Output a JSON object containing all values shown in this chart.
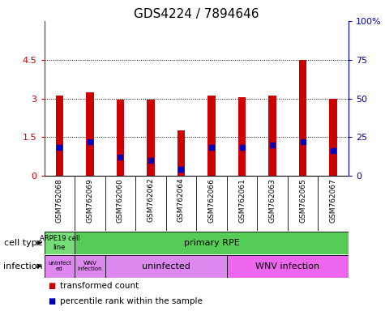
{
  "title": "GDS4224 / 7894646",
  "samples": [
    "GSM762068",
    "GSM762069",
    "GSM762060",
    "GSM762062",
    "GSM762064",
    "GSM762066",
    "GSM762061",
    "GSM762063",
    "GSM762065",
    "GSM762067"
  ],
  "transformed_counts": [
    3.1,
    3.25,
    2.95,
    2.95,
    1.75,
    3.1,
    3.05,
    3.1,
    4.5,
    3.0
  ],
  "percentile_ranks_pct": [
    18,
    22,
    12,
    10,
    4,
    18,
    18,
    20,
    22,
    16
  ],
  "ylim_left": [
    0,
    6
  ],
  "ylim_right": [
    0,
    100
  ],
  "yticks_left": [
    0,
    1.5,
    3.0,
    4.5
  ],
  "ytick_labels_left": [
    "0",
    "1.5",
    "3",
    "4.5"
  ],
  "yticks_right": [
    0,
    25,
    50,
    75,
    100
  ],
  "ytick_labels_right": [
    "0",
    "25",
    "50",
    "75",
    "100%"
  ],
  "bar_color": "#cc0000",
  "dot_color": "#0000bb",
  "background_color": "#ffffff",
  "title_fontsize": 11,
  "bar_width": 0.25,
  "cell_type_arpe_color": "#77dd77",
  "cell_type_rpe_color": "#55cc55",
  "infection_light_color": "#dd88ee",
  "infection_dark_color": "#ee66ee",
  "row_label_fontsize": 8,
  "sample_label_fontsize": 6.5,
  "annotation_fontsize": 8,
  "legend_fontsize": 7.5
}
